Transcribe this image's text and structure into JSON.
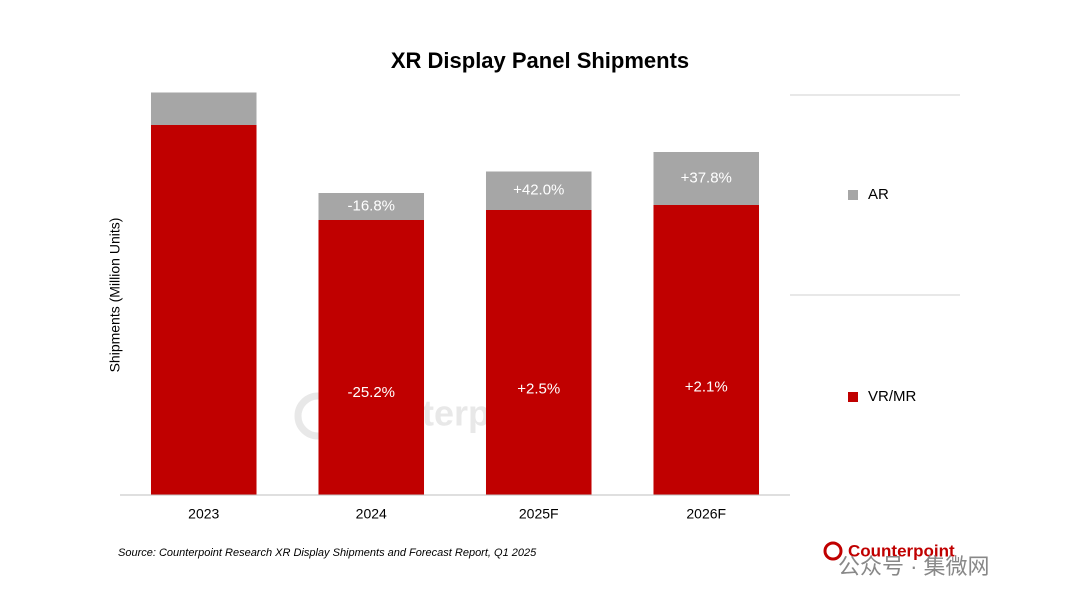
{
  "chart_data": {
    "type": "stacked_bar",
    "title": "XR Display Panel Shipments",
    "y_label": "Shipments (Million Units)",
    "categories": [
      "2023",
      "2024",
      "2025F",
      "2026F"
    ],
    "series": [
      {
        "name": "VR/MR",
        "color": "#c00000",
        "values": [
          7.4,
          5.5,
          5.7,
          5.8
        ],
        "growth_labels": [
          null,
          "-25.2%",
          "+2.5%",
          "+2.1%"
        ]
      },
      {
        "name": "AR",
        "color": "#a6a6a6",
        "values": [
          0.65,
          0.54,
          0.77,
          1.06
        ],
        "growth_labels": [
          null,
          "-16.8%",
          "+42.0%",
          "+37.8%"
        ]
      }
    ],
    "ylim": [
      0,
      8.1
    ],
    "legend": "right",
    "source": "Source: Counterpoint Research XR Display Shipments and Forecast Report, Q1 2025",
    "watermarks": [
      "Counterpoint",
      "Counterpoint",
      "公众号 · 集微网"
    ]
  }
}
